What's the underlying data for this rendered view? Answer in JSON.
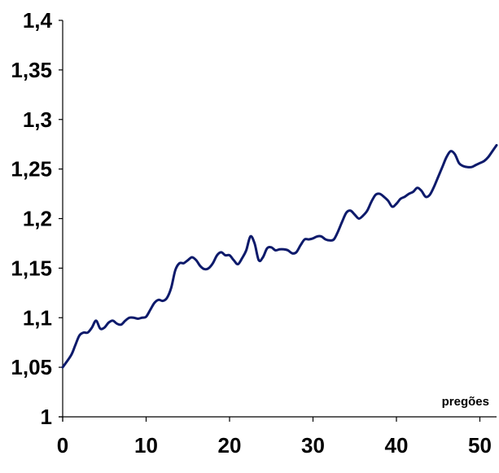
{
  "chart_data": {
    "type": "line",
    "title": "",
    "xlabel": "pregões",
    "ylabel": "",
    "xlim": [
      0,
      52
    ],
    "ylim": [
      1,
      1.4
    ],
    "x_ticks": [
      0,
      10,
      20,
      30,
      40,
      50
    ],
    "x_tick_labels": [
      "0",
      "10",
      "20",
      "30",
      "40",
      "50"
    ],
    "y_ticks": [
      1,
      1.05,
      1.1,
      1.15,
      1.2,
      1.25,
      1.3,
      1.35,
      1.4
    ],
    "y_tick_labels": [
      "1",
      "1,05",
      "1,1",
      "1,15",
      "1,2",
      "1,25",
      "1,3",
      "1,35",
      "1,4"
    ],
    "grid": false,
    "line_color": "#0d1a6b",
    "series": [
      {
        "name": "",
        "x": [
          0,
          1,
          1.5,
          2,
          2.5,
          3,
          3.5,
          4,
          4.5,
          5,
          5.5,
          6,
          6.5,
          7,
          7.5,
          8,
          8.5,
          9,
          9.5,
          10,
          10.5,
          11,
          11.5,
          12,
          12.5,
          13,
          13.5,
          14,
          14.5,
          15,
          15.5,
          16,
          16.5,
          17,
          17.5,
          18,
          18.5,
          19,
          19.5,
          20,
          20.5,
          21,
          21.5,
          22,
          22.5,
          23,
          23.5,
          24,
          24.5,
          25,
          25.5,
          26,
          26.5,
          27,
          27.5,
          28,
          28.5,
          29,
          29.5,
          30,
          30.5,
          31,
          31.5,
          32,
          32.5,
          33,
          33.5,
          34,
          34.5,
          35,
          35.5,
          36,
          36.5,
          37,
          37.5,
          38,
          38.5,
          39,
          39.5,
          40,
          40.5,
          41,
          41.5,
          42,
          42.5,
          43,
          43.5,
          44,
          44.5,
          45,
          45.5,
          46,
          46.5,
          47,
          47.5,
          48,
          48.5,
          49,
          49.5,
          50,
          50.5,
          51,
          51.5,
          52
        ],
        "values": [
          1.05,
          1.062,
          1.072,
          1.082,
          1.085,
          1.085,
          1.09,
          1.097,
          1.089,
          1.09,
          1.095,
          1.097,
          1.094,
          1.093,
          1.097,
          1.1,
          1.1,
          1.099,
          1.1,
          1.101,
          1.108,
          1.115,
          1.118,
          1.117,
          1.12,
          1.13,
          1.148,
          1.155,
          1.155,
          1.158,
          1.161,
          1.158,
          1.152,
          1.149,
          1.15,
          1.155,
          1.163,
          1.166,
          1.163,
          1.163,
          1.158,
          1.154,
          1.16,
          1.168,
          1.182,
          1.175,
          1.158,
          1.161,
          1.17,
          1.171,
          1.168,
          1.169,
          1.169,
          1.168,
          1.165,
          1.166,
          1.173,
          1.179,
          1.179,
          1.18,
          1.182,
          1.182,
          1.179,
          1.178,
          1.179,
          1.187,
          1.197,
          1.206,
          1.208,
          1.204,
          1.2,
          1.203,
          1.208,
          1.217,
          1.224,
          1.225,
          1.222,
          1.218,
          1.212,
          1.215,
          1.22,
          1.222,
          1.225,
          1.227,
          1.231,
          1.228,
          1.222,
          1.224,
          1.232,
          1.242,
          1.252,
          1.262,
          1.268,
          1.265,
          1.256,
          1.253,
          1.252,
          1.252,
          1.254,
          1.256,
          1.258,
          1.262,
          1.268,
          1.274
        ]
      }
    ]
  }
}
